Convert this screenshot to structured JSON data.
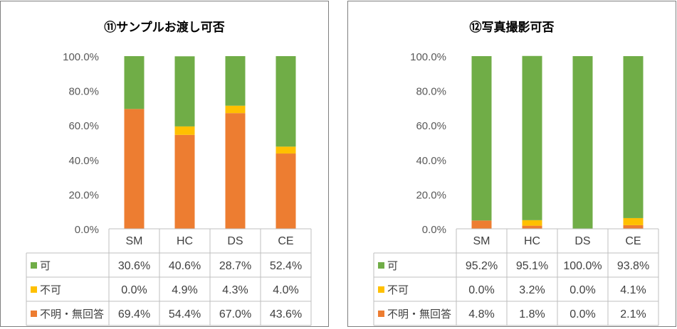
{
  "colors": {
    "ka": "#70ad47",
    "fuka": "#ffc000",
    "unknown": "#ed7d31"
  },
  "chart_data": [
    {
      "type": "bar",
      "stacked": true,
      "title": "⑪サンプルお渡し可否",
      "categories": [
        "SM",
        "HC",
        "DS",
        "CE"
      ],
      "yticks": [
        "0.0%",
        "20.0%",
        "40.0%",
        "60.0%",
        "80.0%",
        "100.0%"
      ],
      "ylim": [
        0,
        100
      ],
      "series": [
        {
          "name": "可",
          "color": "#70ad47",
          "values": [
            30.6,
            40.6,
            28.7,
            52.4
          ],
          "labels": [
            "30.6%",
            "40.6%",
            "28.7%",
            "52.4%"
          ]
        },
        {
          "name": "不可",
          "color": "#ffc000",
          "values": [
            0.0,
            4.9,
            4.3,
            4.0
          ],
          "labels": [
            "0.0%",
            "4.9%",
            "4.3%",
            "4.0%"
          ]
        },
        {
          "name": "不明・無回答",
          "color": "#ed7d31",
          "values": [
            69.4,
            54.4,
            67.0,
            43.6
          ],
          "labels": [
            "69.4%",
            "54.4%",
            "67.0%",
            "43.6%"
          ]
        }
      ]
    },
    {
      "type": "bar",
      "stacked": true,
      "title": "⑫写真撮影可否",
      "categories": [
        "SM",
        "HC",
        "DS",
        "CE"
      ],
      "yticks": [
        "0.0%",
        "20.0%",
        "40.0%",
        "60.0%",
        "80.0%",
        "100.0%"
      ],
      "ylim": [
        0,
        100
      ],
      "series": [
        {
          "name": "可",
          "color": "#70ad47",
          "values": [
            95.2,
            95.1,
            100.0,
            93.8
          ],
          "labels": [
            "95.2%",
            "95.1%",
            "100.0%",
            "93.8%"
          ]
        },
        {
          "name": "不可",
          "color": "#ffc000",
          "values": [
            0.0,
            3.2,
            0.0,
            4.1
          ],
          "labels": [
            "0.0%",
            "3.2%",
            "0.0%",
            "4.1%"
          ]
        },
        {
          "name": "不明・無回答",
          "color": "#ed7d31",
          "values": [
            4.8,
            1.8,
            0.0,
            2.1
          ],
          "labels": [
            "4.8%",
            "1.8%",
            "0.0%",
            "2.1%"
          ]
        }
      ]
    }
  ]
}
